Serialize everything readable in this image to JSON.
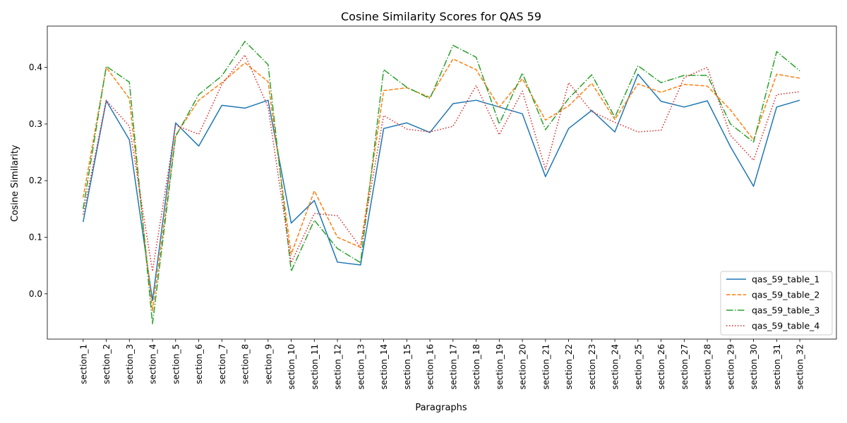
{
  "chart_data": {
    "type": "line",
    "title": "Cosine Similarity Scores for QAS 59",
    "xlabel": "Paragraphs",
    "ylabel": "Cosine Similarity",
    "ylim": [
      -0.08,
      0.473
    ],
    "yticks": [
      "0.0",
      "0.1",
      "0.2",
      "0.3",
      "0.4"
    ],
    "yticks_values": [
      0.0,
      0.1,
      0.2,
      0.3,
      0.4
    ],
    "grid": false,
    "legend_position": "lower right",
    "categories": [
      "section_1",
      "section_2",
      "section_3",
      "section_4",
      "section_5",
      "section_6",
      "section_7",
      "section_8",
      "section_9",
      "section_10",
      "section_11",
      "section_12",
      "section_13",
      "section_14",
      "section_15",
      "section_16",
      "section_17",
      "section_18",
      "section_19",
      "section_20",
      "section_21",
      "section_22",
      "section_23",
      "section_24",
      "section_25",
      "section_26",
      "section_27",
      "section_28",
      "section_29",
      "section_30",
      "section_31",
      "section_32"
    ],
    "series": [
      {
        "name": "qas_59_table_1",
        "color": "#1f77b4",
        "dash": "solid",
        "values": [
          0.127,
          0.341,
          0.272,
          -0.012,
          0.302,
          0.261,
          0.333,
          0.328,
          0.342,
          0.125,
          0.165,
          0.056,
          0.051,
          0.292,
          0.302,
          0.285,
          0.336,
          0.342,
          0.33,
          0.318,
          0.207,
          0.292,
          0.324,
          0.286,
          0.388,
          0.34,
          0.33,
          0.341,
          0.26,
          0.19,
          0.33,
          0.342
        ]
      },
      {
        "name": "qas_59_table_2",
        "color": "#ff7f0e",
        "dash": "dashed",
        "values": [
          0.17,
          0.4,
          0.345,
          -0.03,
          0.28,
          0.342,
          0.373,
          0.408,
          0.375,
          0.07,
          0.182,
          0.1,
          0.082,
          0.359,
          0.364,
          0.347,
          0.415,
          0.396,
          0.33,
          0.38,
          0.307,
          0.332,
          0.372,
          0.308,
          0.371,
          0.356,
          0.37,
          0.367,
          0.325,
          0.272,
          0.388,
          0.381
        ]
      },
      {
        "name": "qas_59_table_3",
        "color": "#2ca02c",
        "dash": "dashdot",
        "values": [
          0.15,
          0.402,
          0.374,
          -0.053,
          0.278,
          0.352,
          0.385,
          0.446,
          0.405,
          0.04,
          0.13,
          0.08,
          0.055,
          0.396,
          0.365,
          0.345,
          0.439,
          0.418,
          0.3,
          0.39,
          0.29,
          0.345,
          0.387,
          0.312,
          0.403,
          0.373,
          0.386,
          0.386,
          0.3,
          0.268,
          0.428,
          0.394
        ]
      },
      {
        "name": "qas_59_table_4",
        "color": "#d62728",
        "dash": "dotted",
        "values": [
          0.14,
          0.342,
          0.296,
          0.04,
          0.298,
          0.282,
          0.37,
          0.422,
          0.33,
          0.055,
          0.142,
          0.138,
          0.082,
          0.315,
          0.291,
          0.286,
          0.296,
          0.368,
          0.281,
          0.358,
          0.22,
          0.373,
          0.322,
          0.303,
          0.286,
          0.289,
          0.382,
          0.4,
          0.28,
          0.236,
          0.352,
          0.357
        ]
      }
    ]
  }
}
